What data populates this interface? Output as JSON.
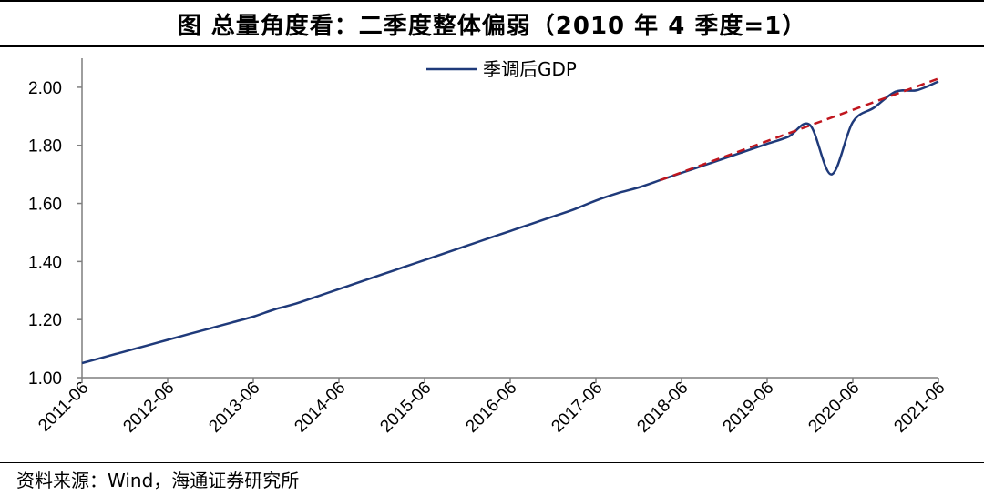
{
  "title": "图  总量角度看：二季度整体偏弱（2010 年 4 季度=1）",
  "source": "资料来源：Wind，海通证券研究所",
  "colors": {
    "series": "#1f3a7a",
    "trend": "#c0161e",
    "axis": "#7f7f7f"
  },
  "chart_data": {
    "type": "line",
    "title": "",
    "xlabel": "",
    "ylabel": "",
    "ylim": [
      1.0,
      2.1
    ],
    "yticks": [
      "1.00",
      "1.20",
      "1.40",
      "1.60",
      "1.80",
      "2.00"
    ],
    "xticks": [
      "2011-06",
      "2012-06",
      "2013-06",
      "2014-06",
      "2015-06",
      "2016-06",
      "2017-06",
      "2018-06",
      "2019-06",
      "2020-06",
      "2021-06"
    ],
    "grid": false,
    "legend_position": "top-center",
    "series": [
      {
        "name": "季调后GDP",
        "style": "solid",
        "x": [
          "2011-06",
          "2011-09",
          "2011-12",
          "2012-03",
          "2012-06",
          "2012-09",
          "2012-12",
          "2013-03",
          "2013-06",
          "2013-09",
          "2013-12",
          "2014-03",
          "2014-06",
          "2014-09",
          "2014-12",
          "2015-03",
          "2015-06",
          "2015-09",
          "2015-12",
          "2016-03",
          "2016-06",
          "2016-09",
          "2016-12",
          "2017-03",
          "2017-06",
          "2017-09",
          "2017-12",
          "2018-03",
          "2018-06",
          "2018-09",
          "2018-12",
          "2019-03",
          "2019-06",
          "2019-09",
          "2019-12",
          "2020-03",
          "2020-06",
          "2020-09",
          "2020-12",
          "2021-03",
          "2021-06"
        ],
        "values": [
          1.05,
          1.07,
          1.09,
          1.11,
          1.13,
          1.15,
          1.17,
          1.19,
          1.21,
          1.235,
          1.255,
          1.28,
          1.305,
          1.33,
          1.355,
          1.38,
          1.405,
          1.43,
          1.455,
          1.48,
          1.505,
          1.53,
          1.555,
          1.58,
          1.61,
          1.635,
          1.655,
          1.68,
          1.705,
          1.73,
          1.755,
          1.78,
          1.805,
          1.83,
          1.87,
          1.7,
          1.88,
          1.93,
          1.985,
          1.99,
          2.02
        ]
      },
      {
        "name": "",
        "style": "dashed",
        "x": [
          "2018-03",
          "2021-06"
        ],
        "values": [
          1.68,
          2.03
        ]
      }
    ]
  }
}
